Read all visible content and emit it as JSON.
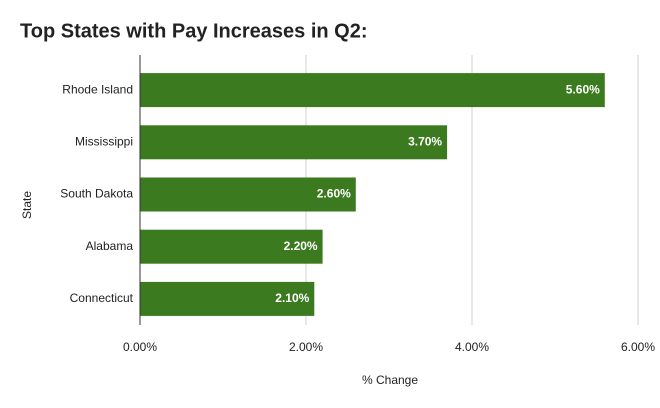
{
  "chart_data": {
    "type": "bar",
    "orientation": "horizontal",
    "title": "Top States with Pay Increases in Q2:",
    "x_label": "% Change",
    "y_label": "State",
    "categories": [
      "Rhode Island",
      "Mississippi",
      "South Dakota",
      "Alabama",
      "Connecticut"
    ],
    "values": [
      5.6,
      3.7,
      2.6,
      2.2,
      2.1
    ],
    "value_labels": [
      "5.60%",
      "3.70%",
      "2.60%",
      "2.20%",
      "2.10%"
    ],
    "color": "#3b7a1e",
    "xlim": [
      0,
      6
    ],
    "xticks": [
      {
        "value": 0,
        "label": "0.00%"
      },
      {
        "value": 2,
        "label": "2.00%"
      },
      {
        "value": 4,
        "label": "4.00%"
      },
      {
        "value": 6,
        "label": "6.00%"
      }
    ],
    "grid": true
  }
}
